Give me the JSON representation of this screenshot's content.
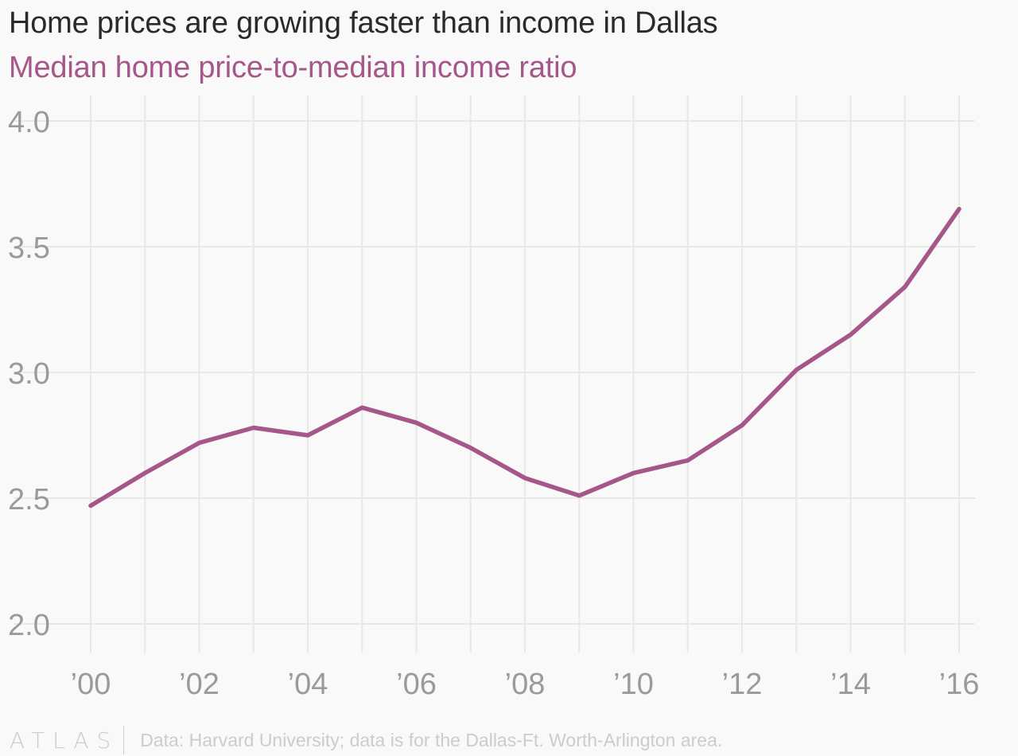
{
  "header": {
    "title": "Home prices are growing faster than income in Dallas",
    "subtitle": "Median home price-to-median income ratio"
  },
  "footer": {
    "logo": "ATLAS",
    "source": "Data: Harvard University; data is for the Dallas-Ft. Worth-Arlington area."
  },
  "colors": {
    "line": "#a6578a",
    "grid": "#e8e8e8",
    "tick": "#9a9a9a"
  },
  "chart_data": {
    "type": "line",
    "title": "Home prices are growing faster than income in Dallas",
    "subtitle": "Median home price-to-median income ratio",
    "x": [
      2000,
      2001,
      2002,
      2003,
      2004,
      2005,
      2006,
      2007,
      2008,
      2009,
      2010,
      2011,
      2012,
      2013,
      2014,
      2015,
      2016
    ],
    "series": [
      {
        "values": [
          2.47,
          2.6,
          2.72,
          2.78,
          2.75,
          2.86,
          2.8,
          2.7,
          2.58,
          2.51,
          2.6,
          2.65,
          2.79,
          3.01,
          3.15,
          3.34,
          3.65
        ]
      }
    ],
    "xticks": [
      {
        "value": 2000,
        "label": "’00"
      },
      {
        "value": 2002,
        "label": "’02"
      },
      {
        "value": 2004,
        "label": "’04"
      },
      {
        "value": 2006,
        "label": "’06"
      },
      {
        "value": 2008,
        "label": "’08"
      },
      {
        "value": 2010,
        "label": "’10"
      },
      {
        "value": 2012,
        "label": "’12"
      },
      {
        "value": 2014,
        "label": "’14"
      },
      {
        "value": 2016,
        "label": "’16"
      }
    ],
    "yticks": [
      {
        "value": 2.0,
        "label": "2.0"
      },
      {
        "value": 2.5,
        "label": "2.5"
      },
      {
        "value": 3.0,
        "label": "3.0"
      },
      {
        "value": 3.5,
        "label": "3.5"
      },
      {
        "value": 4.0,
        "label": "4.0"
      }
    ],
    "xlim": [
      2000,
      2016
    ],
    "ylim": [
      2.0,
      4.0
    ],
    "grid": true,
    "legend": "none"
  }
}
